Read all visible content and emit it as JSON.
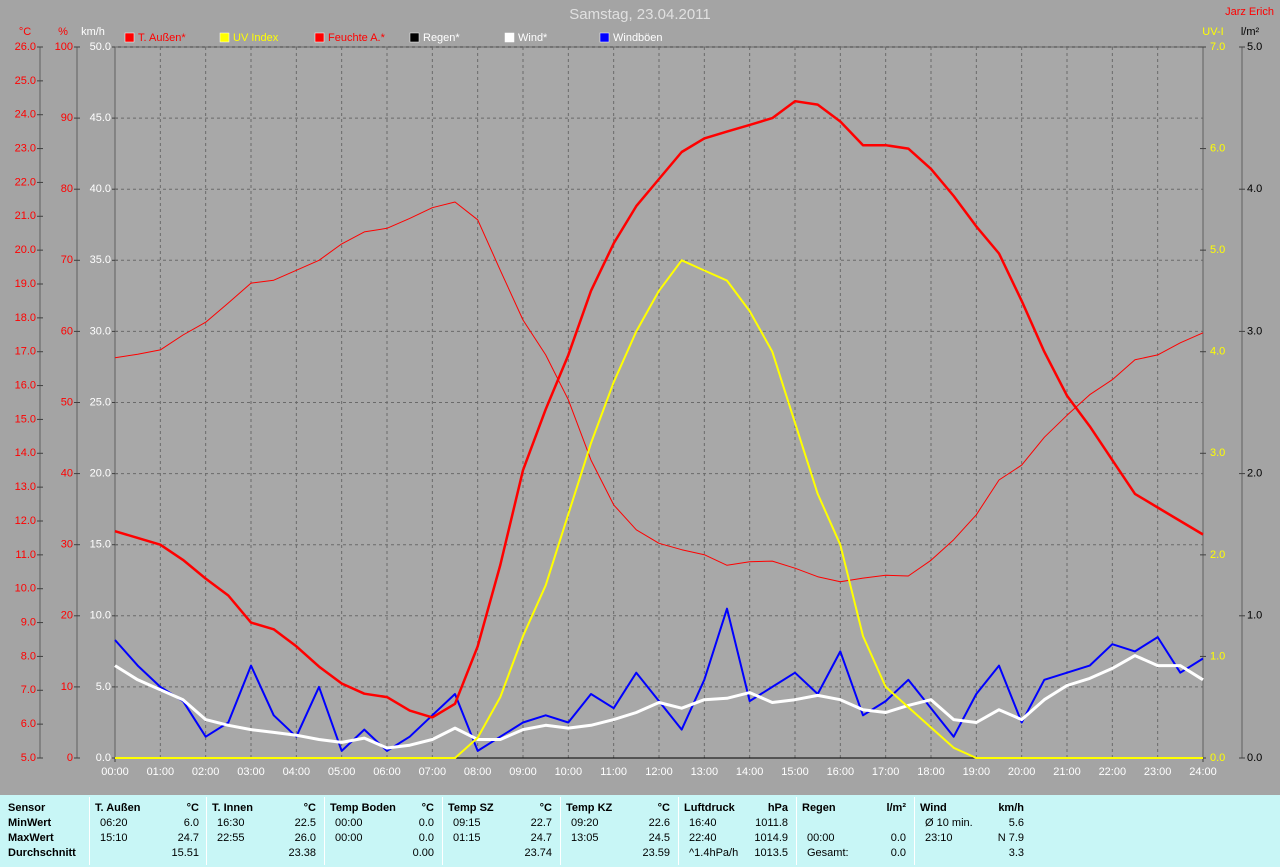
{
  "chart_data": {
    "type": "line",
    "title": "Samstag, 23.04.2011",
    "author": "Jarz Erich",
    "grid": true,
    "x": [
      0,
      0.5,
      1,
      1.5,
      2,
      2.5,
      3,
      3.5,
      4,
      4.5,
      5,
      5.5,
      6,
      6.5,
      7,
      7.5,
      8,
      8.5,
      9,
      9.5,
      10,
      10.5,
      11,
      11.5,
      12,
      12.5,
      13,
      13.5,
      14,
      14.5,
      15,
      15.5,
      16,
      16.5,
      17,
      17.5,
      18,
      18.5,
      19,
      19.5,
      20,
      20.5,
      21,
      21.5,
      22,
      22.5,
      23,
      23.5,
      24
    ],
    "xlim": [
      0,
      24
    ],
    "xticks": [
      {
        "value": 0,
        "label": "00:00"
      },
      {
        "value": 1,
        "label": "01:00"
      },
      {
        "value": 2,
        "label": "02:00"
      },
      {
        "value": 3,
        "label": "03:00"
      },
      {
        "value": 4,
        "label": "04:00"
      },
      {
        "value": 5,
        "label": "05:00"
      },
      {
        "value": 6,
        "label": "06:00"
      },
      {
        "value": 7,
        "label": "07:00"
      },
      {
        "value": 8,
        "label": "08:00"
      },
      {
        "value": 9,
        "label": "09:00"
      },
      {
        "value": 10,
        "label": "10:00"
      },
      {
        "value": 11,
        "label": "11:00"
      },
      {
        "value": 12,
        "label": "12:00"
      },
      {
        "value": 13,
        "label": "13:00"
      },
      {
        "value": 14,
        "label": "14:00"
      },
      {
        "value": 15,
        "label": "15:00"
      },
      {
        "value": 16,
        "label": "16:00"
      },
      {
        "value": 17,
        "label": "17:00"
      },
      {
        "value": 18,
        "label": "18:00"
      },
      {
        "value": 19,
        "label": "19:00"
      },
      {
        "value": 20,
        "label": "20:00"
      },
      {
        "value": 21,
        "label": "21:00"
      },
      {
        "value": 22,
        "label": "22:00"
      },
      {
        "value": 23,
        "label": "23:00"
      },
      {
        "value": 24,
        "label": "24:00"
      }
    ],
    "axes": [
      {
        "label": "°C",
        "color": "#ff0000",
        "lim": [
          5,
          26
        ],
        "ticks": [
          {
            "value": 5,
            "label": "5.0"
          },
          {
            "value": 6,
            "label": "6.0"
          },
          {
            "value": 7,
            "label": "7.0"
          },
          {
            "value": 8,
            "label": "8.0"
          },
          {
            "value": 9,
            "label": "9.0"
          },
          {
            "value": 10,
            "label": "10.0"
          },
          {
            "value": 11,
            "label": "11.0"
          },
          {
            "value": 12,
            "label": "12.0"
          },
          {
            "value": 13,
            "label": "13.0"
          },
          {
            "value": 14,
            "label": "14.0"
          },
          {
            "value": 15,
            "label": "15.0"
          },
          {
            "value": 16,
            "label": "16.0"
          },
          {
            "value": 17,
            "label": "17.0"
          },
          {
            "value": 18,
            "label": "18.0"
          },
          {
            "value": 19,
            "label": "19.0"
          },
          {
            "value": 20,
            "label": "20.0"
          },
          {
            "value": 21,
            "label": "21.0"
          },
          {
            "value": 22,
            "label": "22.0"
          },
          {
            "value": 23,
            "label": "23.0"
          },
          {
            "value": 24,
            "label": "24.0"
          },
          {
            "value": 25,
            "label": "25.0"
          },
          {
            "value": 26,
            "label": "26.0"
          }
        ]
      },
      {
        "label": "%",
        "color": "#ff0000",
        "lim": [
          0,
          100
        ],
        "ticks": [
          0,
          10,
          20,
          30,
          40,
          50,
          60,
          70,
          80,
          90,
          100
        ]
      },
      {
        "label": "km/h",
        "color": "#ffffff",
        "lim": [
          0,
          50
        ],
        "ticks": [
          {
            "value": 0,
            "label": "0.0"
          },
          {
            "value": 5,
            "label": "5.0"
          },
          {
            "value": 10,
            "label": "10.0"
          },
          {
            "value": 15,
            "label": "15.0"
          },
          {
            "value": 20,
            "label": "20.0"
          },
          {
            "value": 25,
            "label": "25.0"
          },
          {
            "value": 30,
            "label": "30.0"
          },
          {
            "value": 35,
            "label": "35.0"
          },
          {
            "value": 40,
            "label": "40.0"
          },
          {
            "value": 45,
            "label": "45.0"
          },
          {
            "value": 50,
            "label": "50.0"
          }
        ]
      },
      {
        "label": "UV-I",
        "color": "#ffff00",
        "lim": [
          0,
          7
        ],
        "ticks": [
          {
            "value": 0,
            "label": "0.0"
          },
          {
            "value": 1,
            "label": "1.0"
          },
          {
            "value": 2,
            "label": "2.0"
          },
          {
            "value": 3,
            "label": "3.0"
          },
          {
            "value": 4,
            "label": "4.0"
          },
          {
            "value": 5,
            "label": "5.0"
          },
          {
            "value": 6,
            "label": "6.0"
          },
          {
            "value": 7,
            "label": "7.0"
          }
        ]
      },
      {
        "label": "l/m²",
        "color": "#000000",
        "lim": [
          0,
          5
        ],
        "ticks": [
          {
            "value": 0,
            "label": "0.0"
          },
          {
            "value": 1,
            "label": "1.0"
          },
          {
            "value": 2,
            "label": "2.0"
          },
          {
            "value": 3,
            "label": "3.0"
          },
          {
            "value": 4,
            "label": "4.0"
          },
          {
            "value": 5,
            "label": "5.0"
          }
        ]
      }
    ],
    "series": [
      {
        "name": "T. Außen*",
        "color": "#ff0000",
        "label_color": "#ff0000",
        "axis": "°C",
        "values": [
          11.7,
          11.5,
          11.3,
          10.85,
          10.3,
          9.8,
          9.0,
          8.8,
          8.3,
          7.7,
          7.2,
          6.9,
          6.8,
          6.4,
          6.2,
          6.6,
          8.3,
          10.7,
          13.5,
          15.3,
          16.9,
          18.8,
          20.2,
          21.3,
          22.1,
          22.9,
          23.3,
          23.5,
          23.7,
          23.9,
          24.4,
          24.3,
          23.8,
          23.1,
          23.1,
          23.0,
          22.4,
          21.6,
          20.7,
          19.9,
          18.5,
          17.0,
          15.7,
          14.8,
          13.8,
          12.8,
          12.4,
          12.0,
          11.6
        ]
      },
      {
        "name": "UV Index",
        "color": "#ffff00",
        "label_color": "#ffff00",
        "axis": "UV-I",
        "values": [
          0,
          0,
          0,
          0,
          0,
          0,
          0,
          0,
          0,
          0,
          0,
          0,
          0,
          0,
          0,
          0,
          0.2,
          0.6,
          1.2,
          1.7,
          2.4,
          3.1,
          3.7,
          4.2,
          4.6,
          4.9,
          4.8,
          4.7,
          4.4,
          4.0,
          3.3,
          2.6,
          2.1,
          1.2,
          0.7,
          0.5,
          0.3,
          0.1,
          0,
          0,
          0,
          0,
          0,
          0,
          0,
          0,
          0,
          0,
          0
        ]
      },
      {
        "name": "Feuchte A.*",
        "color": "#ff0000",
        "label_color": "#ff0000",
        "axis": "%",
        "values": [
          56.3,
          56.8,
          57.4,
          59.5,
          61.3,
          64.0,
          66.8,
          67.2,
          68.6,
          70.0,
          72.3,
          74.0,
          74.5,
          75.9,
          77.4,
          78.2,
          75.7,
          68.6,
          61.6,
          56.7,
          50.4,
          41.9,
          35.6,
          32.1,
          30.2,
          29.3,
          28.6,
          27.1,
          27.6,
          27.7,
          26.7,
          25.5,
          24.8,
          25.3,
          25.7,
          25.6,
          27.8,
          30.7,
          34.2,
          39.1,
          41.2,
          45.1,
          48.2,
          51.1,
          53.2,
          56.0,
          56.7,
          58.4,
          59.8
        ]
      },
      {
        "name": "Regen*",
        "color": "#000000",
        "label_color": "#ffffff",
        "axis": "l/m²",
        "values": [
          0,
          0,
          0,
          0,
          0,
          0,
          0,
          0,
          0,
          0,
          0,
          0,
          0,
          0,
          0,
          0,
          0,
          0,
          0,
          0,
          0,
          0,
          0,
          0,
          0,
          0,
          0,
          0,
          0,
          0,
          0,
          0,
          0,
          0,
          0,
          0,
          0,
          0,
          0,
          0,
          0,
          0,
          0,
          0,
          0,
          0,
          0,
          0,
          0
        ]
      },
      {
        "name": "Wind*",
        "color": "#ffffff",
        "label_color": "#ffffff",
        "axis": "km/h",
        "values": [
          6.5,
          5.5,
          4.8,
          4.1,
          2.7,
          2.3,
          2.0,
          1.8,
          1.6,
          1.3,
          1.1,
          1.4,
          0.7,
          0.9,
          1.3,
          2.1,
          1.3,
          1.3,
          2.0,
          2.3,
          2.1,
          2.3,
          2.7,
          3.2,
          3.9,
          3.5,
          4.1,
          4.2,
          4.6,
          3.9,
          4.1,
          4.4,
          4.1,
          3.4,
          3.2,
          3.7,
          4.1,
          2.7,
          2.5,
          3.4,
          2.7,
          4.1,
          5.1,
          5.6,
          6.3,
          7.2,
          6.5,
          6.5,
          5.5
        ]
      },
      {
        "name": "Windböen",
        "color": "#0000ff",
        "label_color": "#ffffff",
        "axis": "km/h",
        "values": [
          8.3,
          6.5,
          5.0,
          4.0,
          1.5,
          2.5,
          6.5,
          3.0,
          1.5,
          5.0,
          0.5,
          2.0,
          0.5,
          1.5,
          3.0,
          4.5,
          0.5,
          1.5,
          2.5,
          3.0,
          2.5,
          4.5,
          3.5,
          6.0,
          4.0,
          2.0,
          5.5,
          10.5,
          4.0,
          5.0,
          6.0,
          4.5,
          7.5,
          3.0,
          4.0,
          5.5,
          3.5,
          1.5,
          4.5,
          6.5,
          2.5,
          5.5,
          6.0,
          6.5,
          8.0,
          7.5,
          8.5,
          6.0,
          7.0
        ]
      }
    ]
  },
  "table": {
    "row_labels": [
      "Sensor",
      "MinWert",
      "MaxWert",
      "Durchschnitt"
    ],
    "columns": [
      {
        "name": "T. Außen",
        "unit": "°C",
        "cells": [
          [
            "06:20",
            "6.0"
          ],
          [
            "15:10",
            "24.7"
          ],
          [
            null,
            "15.51"
          ]
        ]
      },
      {
        "name": "T. Innen",
        "unit": "°C",
        "cells": [
          [
            "16:30",
            "22.5"
          ],
          [
            "22:55",
            "26.0"
          ],
          [
            null,
            "23.38"
          ]
        ]
      },
      {
        "name": "Temp Boden",
        "unit": "°C",
        "cells": [
          [
            "00:00",
            "0.0"
          ],
          [
            "00:00",
            "0.0"
          ],
          [
            null,
            "0.00"
          ]
        ]
      },
      {
        "name": "Temp SZ",
        "unit": "°C",
        "cells": [
          [
            "09:15",
            "22.7"
          ],
          [
            "01:15",
            "24.7"
          ],
          [
            null,
            "23.74"
          ]
        ]
      },
      {
        "name": "Temp KZ",
        "unit": "°C",
        "cells": [
          [
            "09:20",
            "22.6"
          ],
          [
            "13:05",
            "24.5"
          ],
          [
            null,
            "23.59"
          ]
        ]
      },
      {
        "name": "Luftdruck",
        "unit": "hPa",
        "cells": [
          [
            "16:40",
            "1011.8"
          ],
          [
            "22:40",
            "1014.9"
          ],
          [
            "^1.4hPa/h",
            "1013.5"
          ]
        ]
      },
      {
        "name": "Regen",
        "unit": "l/m²",
        "cells": [
          [
            null,
            null
          ],
          [
            "00:00",
            "0.0"
          ],
          [
            "Gesamt:",
            "0.0"
          ]
        ]
      },
      {
        "name": "Wind",
        "unit": "km/h",
        "cells": [
          [
            "Ø 10 min.",
            "5.6"
          ],
          [
            "23:10",
            "N 7.9"
          ],
          [
            null,
            "3.3"
          ]
        ]
      }
    ]
  }
}
